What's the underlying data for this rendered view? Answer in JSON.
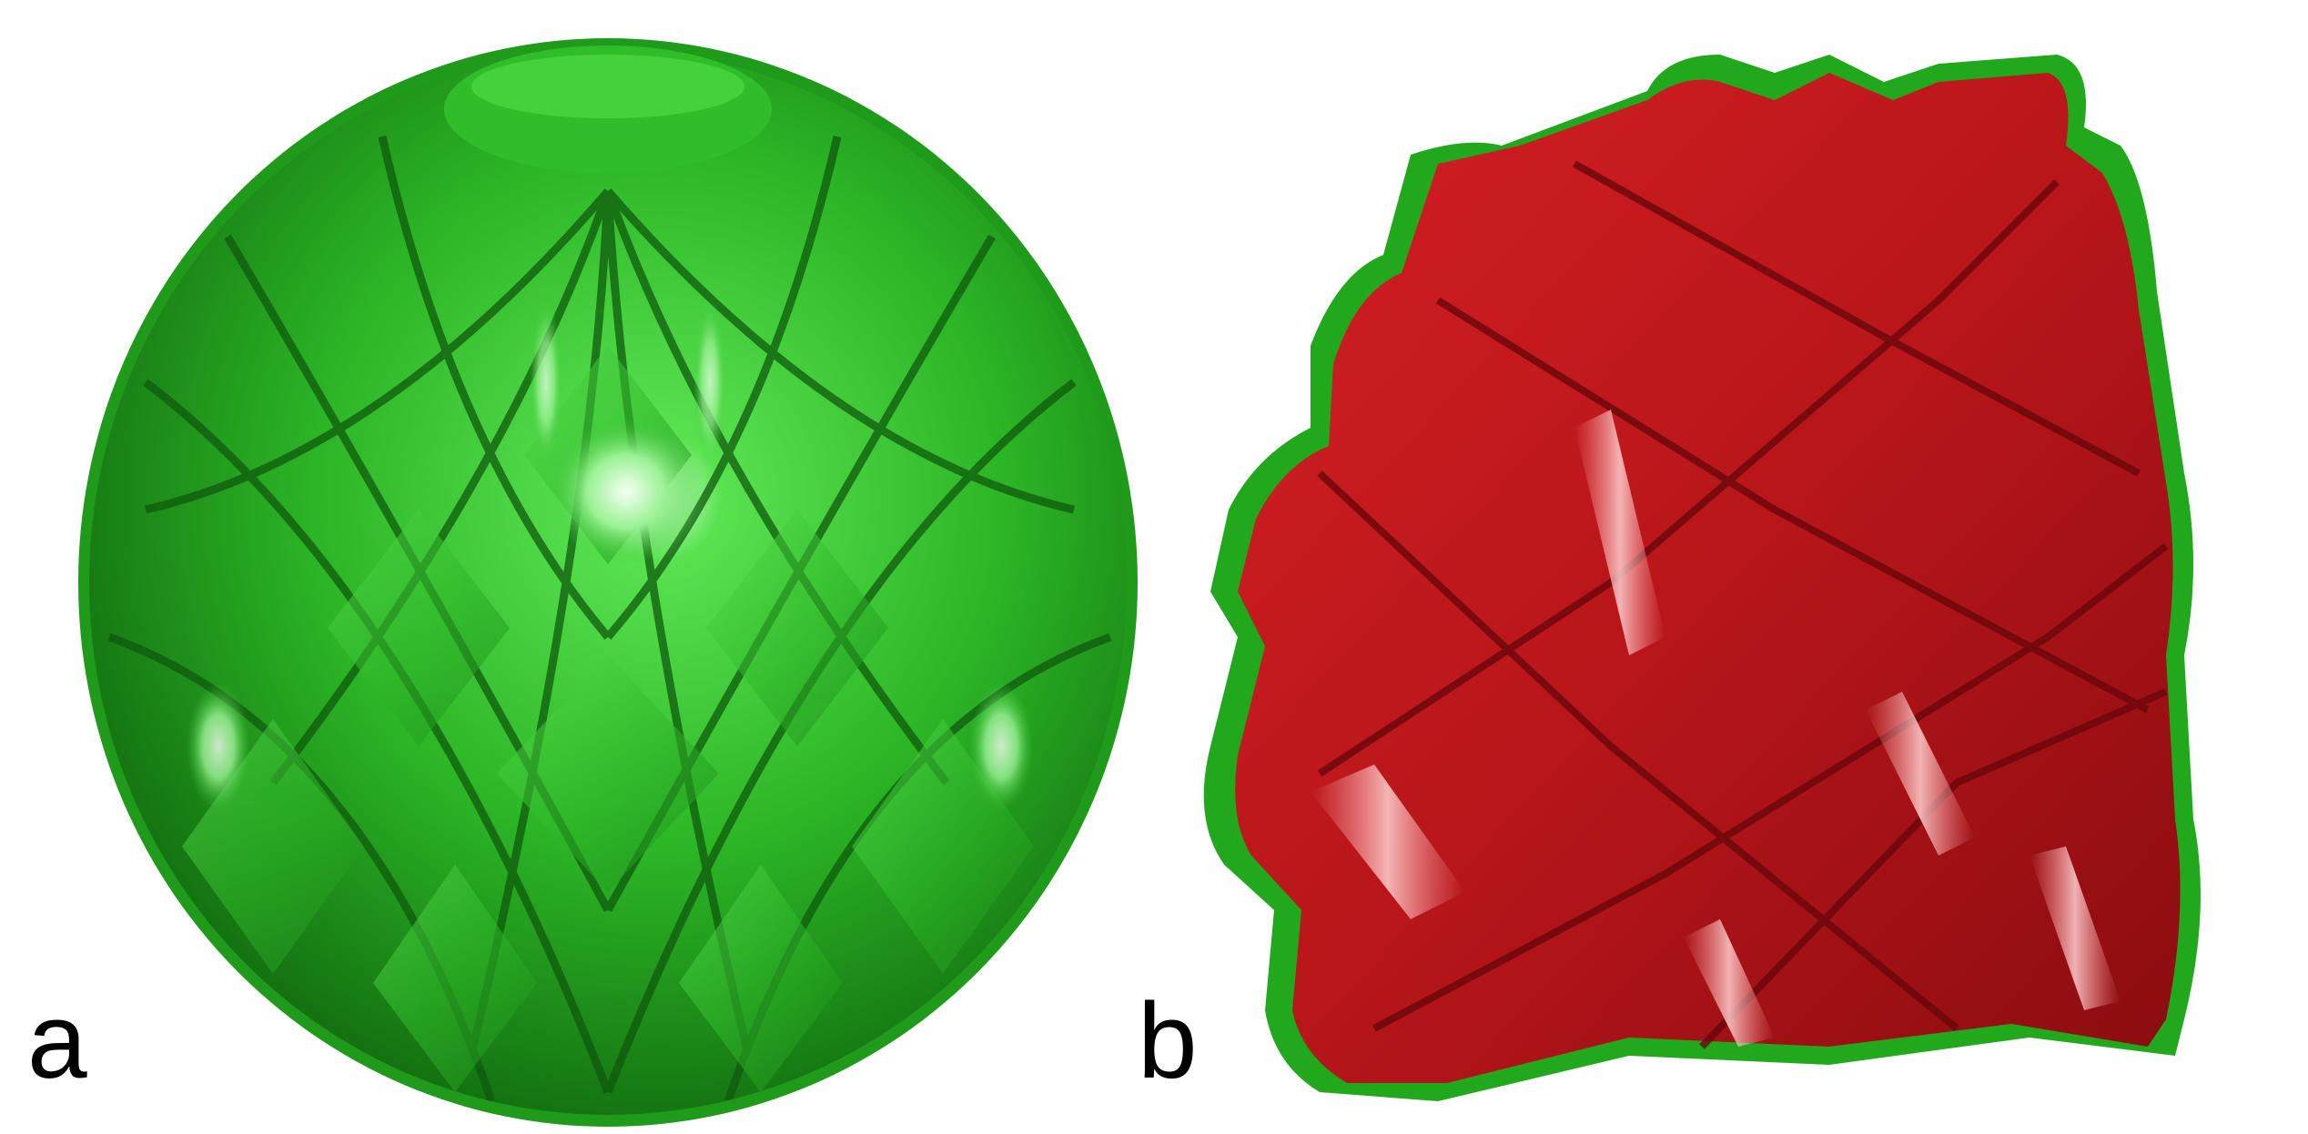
{
  "figure": {
    "panels": [
      {
        "label": "a",
        "object": "green-ribbed-sphere",
        "color": "#2fc42b"
      },
      {
        "label": "b",
        "object": "red-ribbed-sheet-over-green-sheet",
        "color": "#c8181c",
        "back_color": "#22a81d"
      }
    ]
  }
}
